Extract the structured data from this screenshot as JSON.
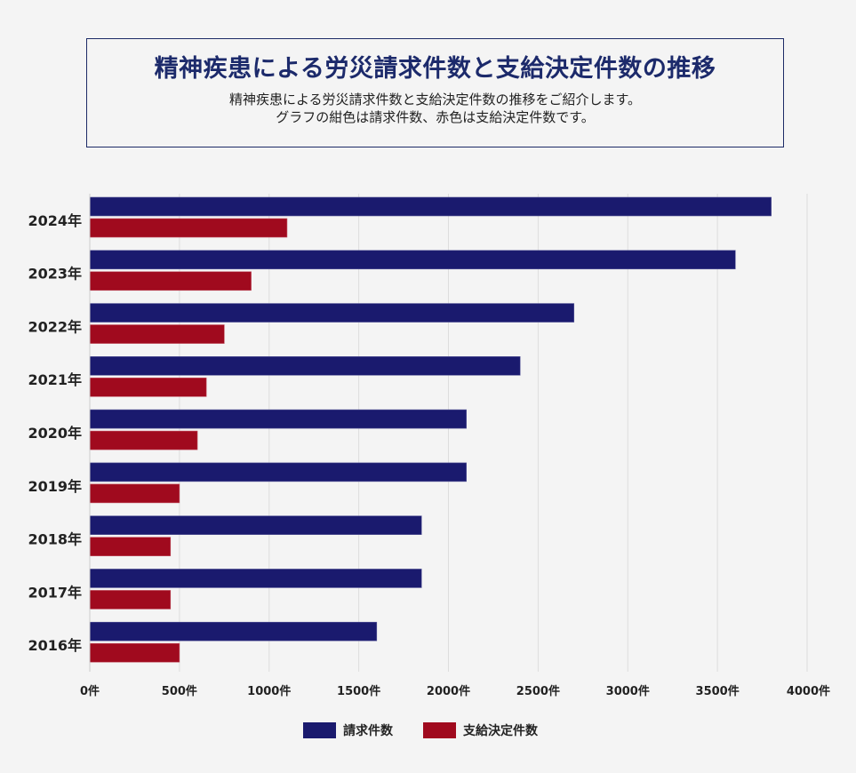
{
  "header": {
    "title": "精神疾患による労災請求件数と支給決定件数の推移",
    "subtitle_line1": "精神疾患による労災請求件数と支給決定件数の推移をご紹介します。",
    "subtitle_line2": "グラフの紺色は請求件数、赤色は支給決定件数です。"
  },
  "chart_data": {
    "type": "bar",
    "orientation": "horizontal",
    "categories": [
      "2024年",
      "2023年",
      "2022年",
      "2021年",
      "2020年",
      "2019年",
      "2018年",
      "2017年",
      "2016年"
    ],
    "series": [
      {
        "name": "請求件数",
        "color": "#1a1a6e",
        "values": [
          3800,
          3600,
          2700,
          2400,
          2100,
          2100,
          1850,
          1850,
          1600
        ]
      },
      {
        "name": "支給決定件数",
        "color": "#a00a1e",
        "values": [
          1100,
          900,
          750,
          650,
          600,
          500,
          450,
          450,
          500
        ]
      }
    ],
    "xlim": [
      0,
      4000
    ],
    "xticks": [
      0,
      500,
      1000,
      1500,
      2000,
      2500,
      3000,
      3500,
      4000
    ],
    "tick_suffix": "件",
    "grid": true,
    "legend_position": "bottom"
  }
}
